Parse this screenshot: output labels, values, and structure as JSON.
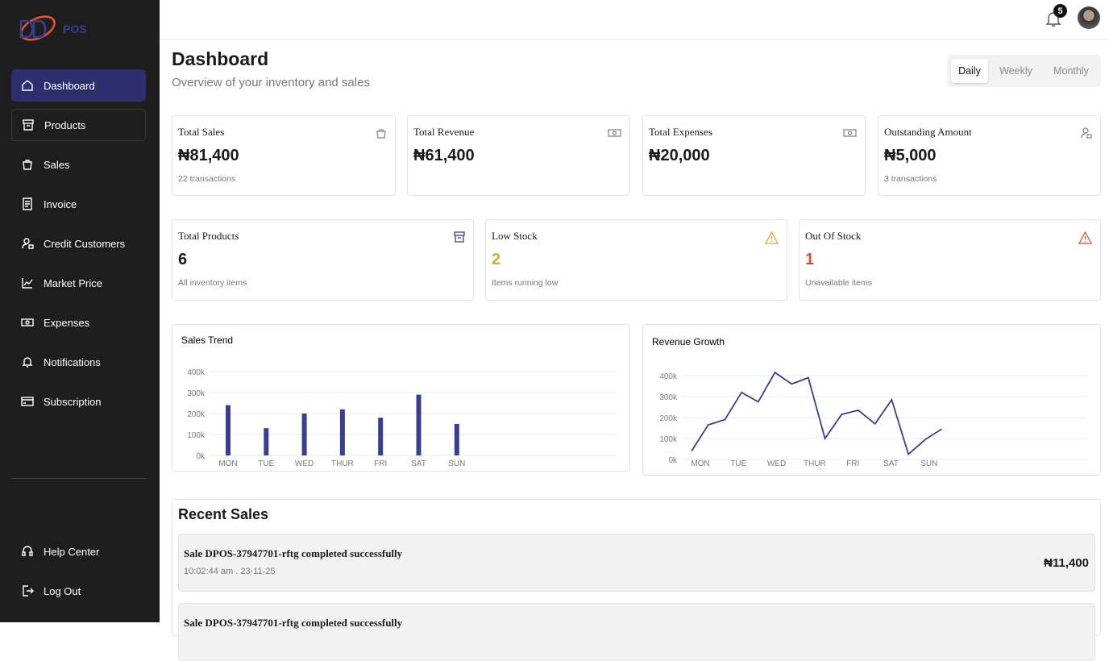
{
  "sidebar": {
    "brand": "POS",
    "nav": [
      "Dashboard",
      "Products",
      "Sales",
      "Invoice",
      "Credit Customers",
      "Market Price",
      "Expenses",
      "Notifications",
      "Subscription"
    ],
    "help": "Help Center",
    "logout": "Log Out"
  },
  "header": {
    "notification_count": "5"
  },
  "page": {
    "title": "Dashboard",
    "subtitle": "Overview of your inventory and sales",
    "tabs": [
      "Daily",
      "Weekly",
      "Monthly"
    ]
  },
  "stats_row1": [
    {
      "label": "Total Sales",
      "value": "₦81,400",
      "note": "22 transactions"
    },
    {
      "label": "Total Revenue",
      "value": "₦61,400"
    },
    {
      "label": "Total Expenses",
      "value": "₦20,000"
    },
    {
      "label": "Outstanding Amount",
      "value": "₦5,000",
      "note": "3 transactions"
    }
  ],
  "stats_row2": [
    {
      "label": "Total Products",
      "value": "6",
      "note": "All inventory items"
    },
    {
      "label": "Low Stock",
      "value": "2",
      "note": "Items running low"
    },
    {
      "label": "Out Of Stock",
      "value": "1",
      "note": "Unavailable items"
    }
  ],
  "chart_data": [
    {
      "type": "bar",
      "title": "Sales Trend",
      "categories": [
        "MON",
        "TUE",
        "WED",
        "THUR",
        "FRI",
        "SAT",
        "SUN"
      ],
      "values": [
        240000,
        130000,
        200000,
        220000,
        180000,
        290000,
        150000
      ],
      "color": "#3b3d93",
      "ylim": [
        0,
        400000
      ],
      "yticks": [
        {
          "value": 0,
          "label": "0k"
        },
        {
          "value": 100000,
          "label": "100k"
        },
        {
          "value": 200000,
          "label": "200k"
        },
        {
          "value": 300000,
          "label": "300k"
        },
        {
          "value": 400000,
          "label": "400k"
        }
      ],
      "grid": true
    },
    {
      "type": "line",
      "title": "Revenue Growth",
      "xticks": [
        "MON",
        "TUE",
        "WED",
        "THUR",
        "FRI",
        "SAT",
        "SUN"
      ],
      "values": [
        40000,
        165000,
        190000,
        320000,
        275000,
        415000,
        360000,
        390000,
        100000,
        215000,
        235000,
        170000,
        285000,
        25000,
        95000,
        145000
      ],
      "color": "#3b3d93",
      "ylim": [
        0,
        400000
      ],
      "yticks": [
        {
          "value": 0,
          "label": "0k"
        },
        {
          "value": 100000,
          "label": "100k"
        },
        {
          "value": 200000,
          "label": "200k"
        },
        {
          "value": 300000,
          "label": "300k"
        },
        {
          "value": 400000,
          "label": "400k"
        }
      ],
      "grid": true
    }
  ],
  "recent_sales": {
    "title": "Recent Sales",
    "items": [
      {
        "title": "Sale DPOS-37947701-rftg completed successfully",
        "time": "10:02:44 am . 23-11-25",
        "amount": "₦11,400"
      },
      {
        "title": "Sale DPOS-37947701-rftg completed successfully"
      }
    ]
  }
}
